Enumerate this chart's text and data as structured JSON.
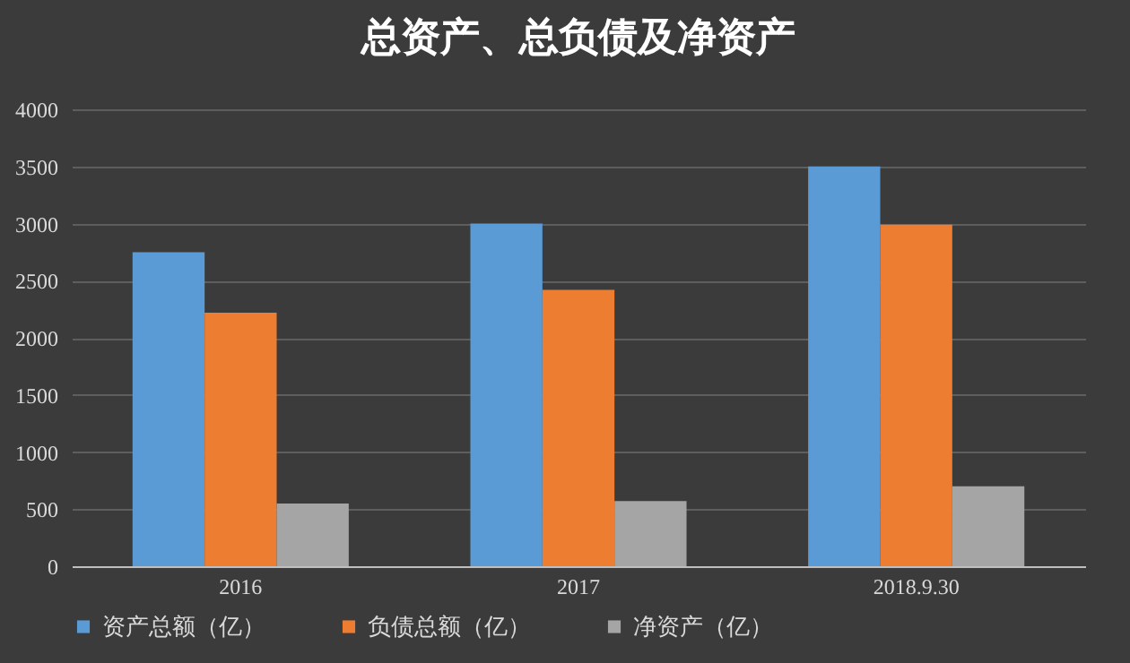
{
  "chart_data": {
    "type": "bar",
    "title": "总资产、总负债及净资产",
    "categories": [
      "2016",
      "2017",
      "2018.9.30"
    ],
    "series": [
      {
        "name": "资产总额（亿）",
        "color": "#5b9bd5",
        "values": [
          2750,
          3000,
          3500
        ]
      },
      {
        "name": "负债总额（亿）",
        "color": "#ed7d31",
        "values": [
          2220,
          2420,
          2990
        ]
      },
      {
        "name": "净资产（亿）",
        "color": "#a5a5a5",
        "values": [
          550,
          570,
          700
        ]
      }
    ],
    "ylim": [
      0,
      4000
    ],
    "yticks": [
      0,
      500,
      1000,
      1500,
      2000,
      2500,
      3000,
      3500,
      4000
    ],
    "grid": "y",
    "legend": "bottom"
  }
}
